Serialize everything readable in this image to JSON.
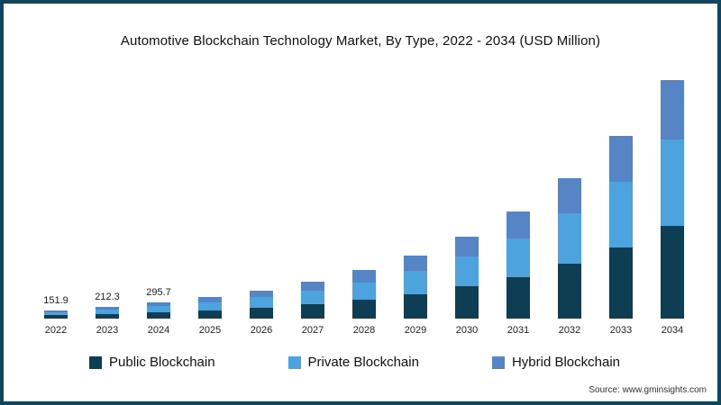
{
  "source": "Source: www.gminsights.com",
  "colors": {
    "frame": "#0f465f",
    "public": "#0d3e54",
    "private": "#4da3de",
    "hybrid": "#5585c5"
  },
  "chart_data": {
    "type": "bar",
    "stacked": true,
    "title": "Automotive Blockchain Technology Market, By Type, 2022 - 2034 (USD Million)",
    "unit": "USD Million",
    "xlabel": "",
    "ylabel": "",
    "grid": false,
    "y_axis_visible": false,
    "legend_position": "bottom",
    "categories": [
      "2022",
      "2023",
      "2024",
      "2025",
      "2026",
      "2027",
      "2028",
      "2029",
      "2030",
      "2031",
      "2032",
      "2033",
      "2034"
    ],
    "series": [
      {
        "key": "public",
        "name": "Public Blockchain",
        "color": "#0d3e54",
        "values": [
          59.2,
          82.8,
          115.3,
          152.1,
          198.9,
          259.4,
          339.3,
          442.7,
          577.2,
          752.7,
          982.8,
          1283.1,
          1673.1
        ]
      },
      {
        "key": "private",
        "name": "Private Blockchain",
        "color": "#4da3de",
        "values": [
          54.7,
          76.4,
          106.5,
          140.4,
          183.6,
          239.4,
          313.2,
          408.6,
          532.8,
          694.8,
          907.2,
          1184.4,
          1544.4
        ]
      },
      {
        "key": "hybrid",
        "name": "Hybrid Blockchain",
        "color": "#5585c5",
        "values": [
          38.0,
          53.1,
          73.9,
          97.5,
          127.5,
          166.2,
          217.5,
          283.7,
          370.0,
          482.5,
          630.0,
          822.5,
          1072.5
        ]
      }
    ],
    "totals_estimated": [
      151.9,
      212.3,
      295.7,
      390,
      510,
      665,
      870,
      1135,
      1480,
      1930,
      2520,
      3290,
      4290
    ],
    "data_labels": {
      "2022": "151.9",
      "2023": "212.3",
      "2024": "295.7"
    }
  }
}
